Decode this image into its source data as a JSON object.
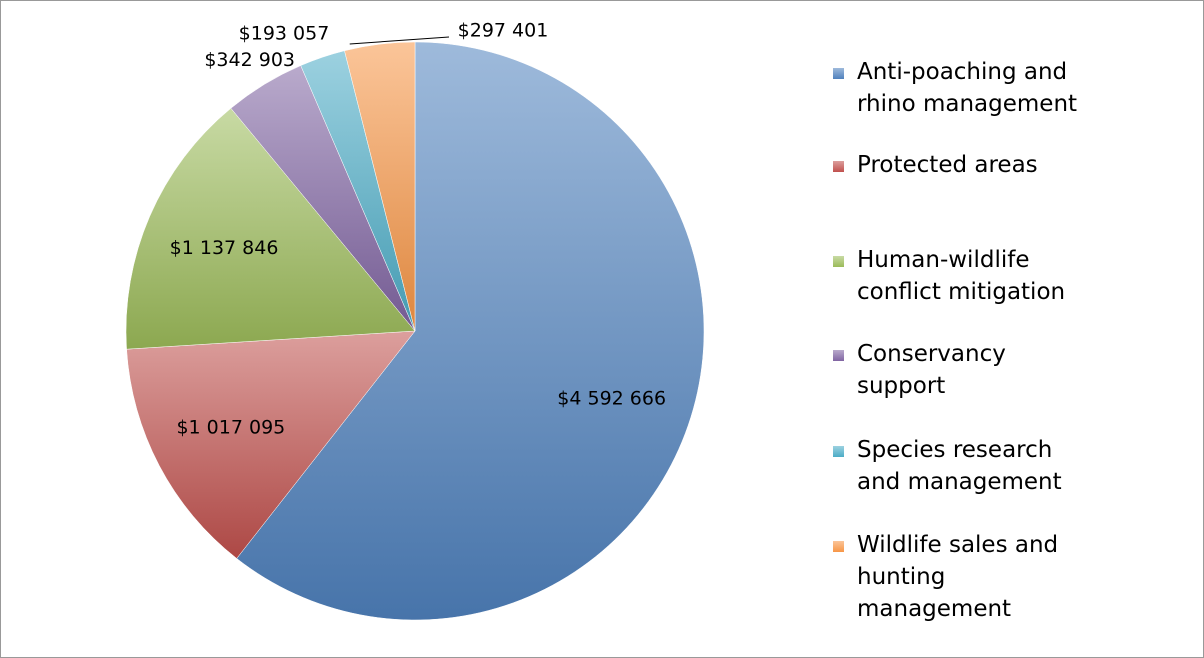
{
  "chart_data": {
    "type": "pie",
    "categories": [
      "Anti-poaching and rhino management",
      "Protected areas",
      "Human-wildlife conflict mitigation",
      "Conservancy support",
      "Species research and management",
      "Wildlife sales and hunting management"
    ],
    "values": [
      4592666,
      1017095,
      1137846,
      342903,
      193057,
      297401
    ],
    "value_labels": [
      "$4 592 666",
      "$1 017 095",
      "$1 137 846",
      "$342 903",
      "$193 057",
      "$297 401"
    ],
    "colors": [
      "#4f81bd",
      "#c0504d",
      "#9bbb59",
      "#8064a2",
      "#4bacc6",
      "#f79646"
    ],
    "legend": "right"
  }
}
